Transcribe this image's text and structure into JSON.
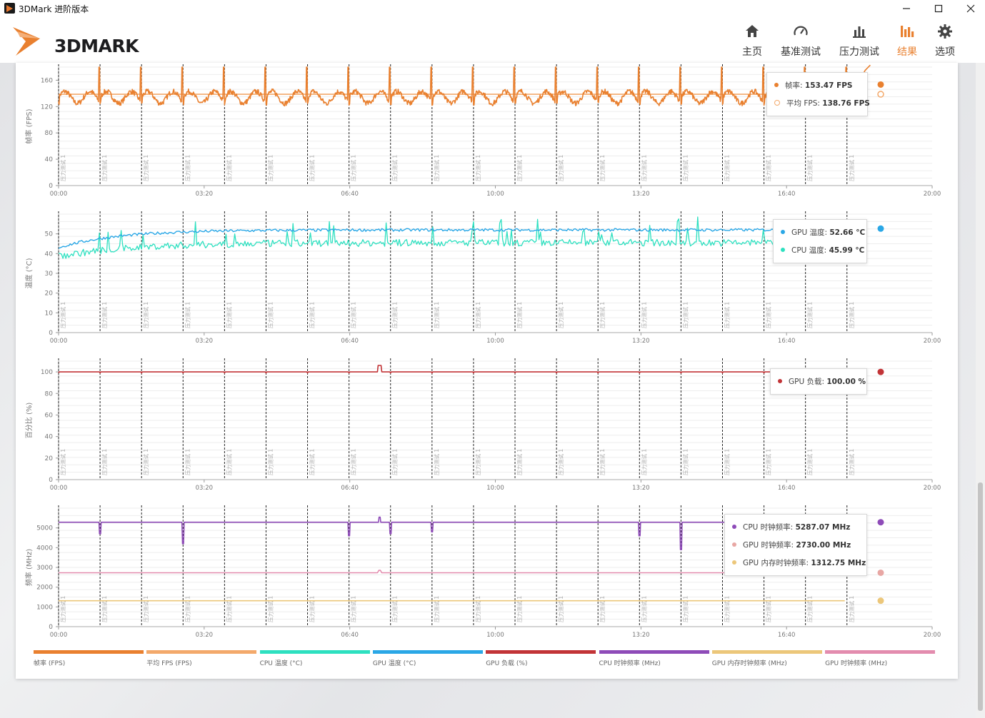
{
  "window": {
    "title": "3DMark 进阶版本",
    "controls": [
      "minimize-icon",
      "maximize-icon",
      "close-icon"
    ]
  },
  "logo": {
    "text": "3DMARK",
    "accent": "#e9802f"
  },
  "nav": [
    {
      "label": "主页",
      "icon": "home-icon",
      "active": false
    },
    {
      "label": "基准测试",
      "icon": "gauge-icon",
      "active": false
    },
    {
      "label": "压力测试",
      "icon": "bar-chart-icon",
      "active": false
    },
    {
      "label": "结果",
      "icon": "results-icon",
      "active": true
    },
    {
      "label": "选项",
      "icon": "gear-icon",
      "active": false
    }
  ],
  "x_ticks": [
    "00:00",
    "03:20",
    "06:40",
    "10:00",
    "13:20",
    "16:40",
    "20:00"
  ],
  "marker_label": "压力测试 1",
  "panels": [
    {
      "ylabel": "帧率 (FPS)",
      "yticks": [
        "0",
        "40",
        "80",
        "120",
        "160"
      ],
      "tooltip": [
        {
          "label": "帧率: ",
          "value": "153.47 FPS",
          "color": "#e9802f",
          "hollow": false
        },
        {
          "label": "平均 FPS: ",
          "value": "138.76 FPS",
          "color": "#f3a96b",
          "hollow": true
        }
      ]
    },
    {
      "ylabel": "温度 (°C)",
      "yticks": [
        "0",
        "10",
        "20",
        "30",
        "40",
        "50"
      ],
      "tooltip": [
        {
          "label": "GPU 温度: ",
          "value": "52.66 °C",
          "color": "#2aa7e6",
          "hollow": false
        },
        {
          "label": "CPU 温度: ",
          "value": "45.99 °C",
          "color": "#2de0c0",
          "hollow": false
        }
      ]
    },
    {
      "ylabel": "百分比 (%)",
      "yticks": [
        "0",
        "20",
        "40",
        "60",
        "80",
        "100"
      ],
      "tooltip": [
        {
          "label": "GPU 负载: ",
          "value": "100.00 %",
          "color": "#c23437",
          "hollow": false
        }
      ]
    },
    {
      "ylabel": "频率 (MHz)",
      "yticks": [
        "0",
        "1000",
        "2000",
        "3000",
        "4000",
        "5000"
      ],
      "tooltip": [
        {
          "label": "CPU 时钟频率: ",
          "value": "5287.07 MHz",
          "color": "#8e4bb8",
          "hollow": false
        },
        {
          "label": "GPU 时钟频率: ",
          "value": "2730.00 MHz",
          "color": "#e8a7a4",
          "hollow": false
        },
        {
          "label": "GPU 内存时钟频率: ",
          "value": "1312.75 MHz",
          "color": "#ecc77a",
          "hollow": false
        }
      ]
    }
  ],
  "legend": [
    {
      "label": "帧率 (FPS)",
      "color": "#e9802f"
    },
    {
      "label": "平均 FPS (FPS)",
      "color": "#f3a96b"
    },
    {
      "label": "CPU 温度 (°C)",
      "color": "#2de0c0"
    },
    {
      "label": "GPU 温度 (°C)",
      "color": "#2aa7e6"
    },
    {
      "label": "GPU 负载 (%)",
      "color": "#c23437"
    },
    {
      "label": "CPU 时钟频率 (MHz)",
      "color": "#8e4bb8"
    },
    {
      "label": "GPU 内存时钟频率 (MHz)",
      "color": "#ecc77a"
    },
    {
      "label": "GPU 时钟频率 (MHz)",
      "color": "#e38cae"
    }
  ],
  "chart_data": [
    {
      "type": "line",
      "xlabel": "",
      "ylabel": "帧率 (FPS)",
      "xlim": [
        0,
        1200
      ],
      "ylim": [
        0,
        180
      ],
      "x_unit": "seconds (mm:ss)",
      "markers_x": [
        0,
        57,
        114,
        171,
        228,
        285,
        342,
        399,
        456,
        513,
        570,
        627,
        684,
        741,
        798,
        855,
        912,
        969,
        1026,
        1083
      ],
      "series": [
        {
          "name": "帧率",
          "pattern": "periodic spikes near 180 every ~57 s, baseline 125–145",
          "approx_values": {
            "x": [
              0,
              14,
              28,
              42,
              56,
              58,
              60,
              70,
              85,
              100,
              113
            ],
            "y": [
              128,
              140,
              132,
              138,
              150,
              182,
              125,
              138,
              130,
              142,
              150
            ]
          },
          "last": 153.47
        },
        {
          "name": "平均 FPS",
          "constant": 138.76
        }
      ]
    },
    {
      "type": "line",
      "xlabel": "",
      "ylabel": "温度 (°C)",
      "xlim": [
        0,
        1200
      ],
      "ylim": [
        0,
        60
      ],
      "series": [
        {
          "name": "GPU 温度",
          "approx_values": {
            "x": [
              0,
              60,
              120,
              240,
              480,
              720,
              960,
              1080
            ],
            "y": [
              42,
              48,
              50,
              51,
              52,
              52,
              52,
              52.66
            ]
          }
        },
        {
          "name": "CPU 温度",
          "approx_values": {
            "x": [
              0,
              60,
              120,
              240,
              480,
              720,
              960,
              1080
            ],
            "y": [
              38,
              40,
              41,
              43,
              45,
              45,
              45,
              45.99
            ]
          }
        }
      ]
    },
    {
      "type": "line",
      "xlabel": "",
      "ylabel": "百分比 (%)",
      "xlim": [
        0,
        1200
      ],
      "ylim": [
        0,
        110
      ],
      "series": [
        {
          "name": "GPU 负载",
          "constant": 100.0
        }
      ]
    },
    {
      "type": "line",
      "xlabel": "",
      "ylabel": "频率 (MHz)",
      "xlim": [
        0,
        1200
      ],
      "ylim": [
        0,
        6000
      ],
      "series": [
        {
          "name": "CPU 时钟频率",
          "constant": 5287.07,
          "dips": [
            {
              "x": 57,
              "y": 4700
            },
            {
              "x": 171,
              "y": 4200
            },
            {
              "x": 399,
              "y": 4600
            },
            {
              "x": 456,
              "y": 4700
            },
            {
              "x": 513,
              "y": 4800
            },
            {
              "x": 798,
              "y": 4600
            },
            {
              "x": 855,
              "y": 3900
            }
          ]
        },
        {
          "name": "GPU 时钟频率",
          "constant": 2730.0
        },
        {
          "name": "GPU 内存时钟频率",
          "constant": 1312.75
        }
      ]
    }
  ]
}
